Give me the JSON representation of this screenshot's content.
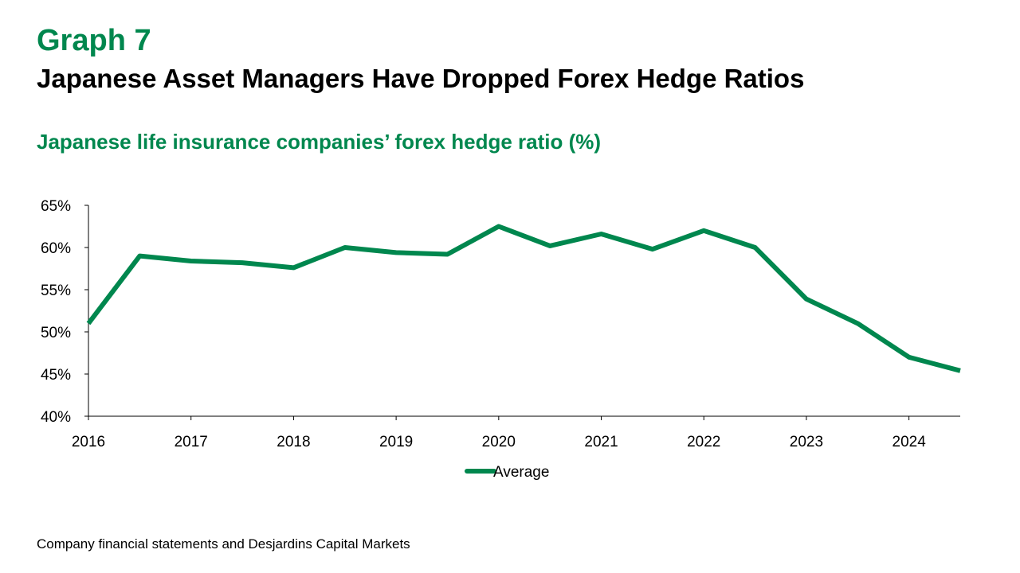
{
  "header": {
    "graph_label": "Graph 7",
    "title": "Japanese Asset Managers Have Dropped Forex Hedge Ratios"
  },
  "source": "Company financial statements and Desjardins Capital Markets",
  "colors": {
    "accent": "#00874e",
    "line": "#00874e"
  },
  "chart_data": {
    "type": "line",
    "title": "Japanese life insurance companies’ forex hedge ratio (%)",
    "xlabel": "",
    "ylabel": "",
    "x": [
      2016.0,
      2016.5,
      2017.0,
      2017.5,
      2018.0,
      2018.5,
      2019.0,
      2019.5,
      2020.0,
      2020.5,
      2021.0,
      2021.5,
      2022.0,
      2022.5,
      2023.0,
      2023.5,
      2024.0,
      2024.5
    ],
    "x_ticks": [
      "2016",
      "2017",
      "2018",
      "2019",
      "2020",
      "2021",
      "2022",
      "2023",
      "2024"
    ],
    "y_ticks": [
      "40%",
      "45%",
      "50%",
      "55%",
      "60%",
      "65%"
    ],
    "ylim": [
      40,
      65
    ],
    "xlim": [
      2016,
      2024.5
    ],
    "grid": false,
    "legend_position": "bottom",
    "series": [
      {
        "name": "Average",
        "color": "#00874e",
        "values": [
          51.0,
          59.0,
          58.4,
          58.2,
          57.6,
          60.0,
          59.4,
          59.2,
          62.5,
          60.2,
          61.6,
          59.8,
          62.0,
          60.0,
          53.9,
          51.0,
          47.0,
          45.4
        ]
      }
    ]
  }
}
